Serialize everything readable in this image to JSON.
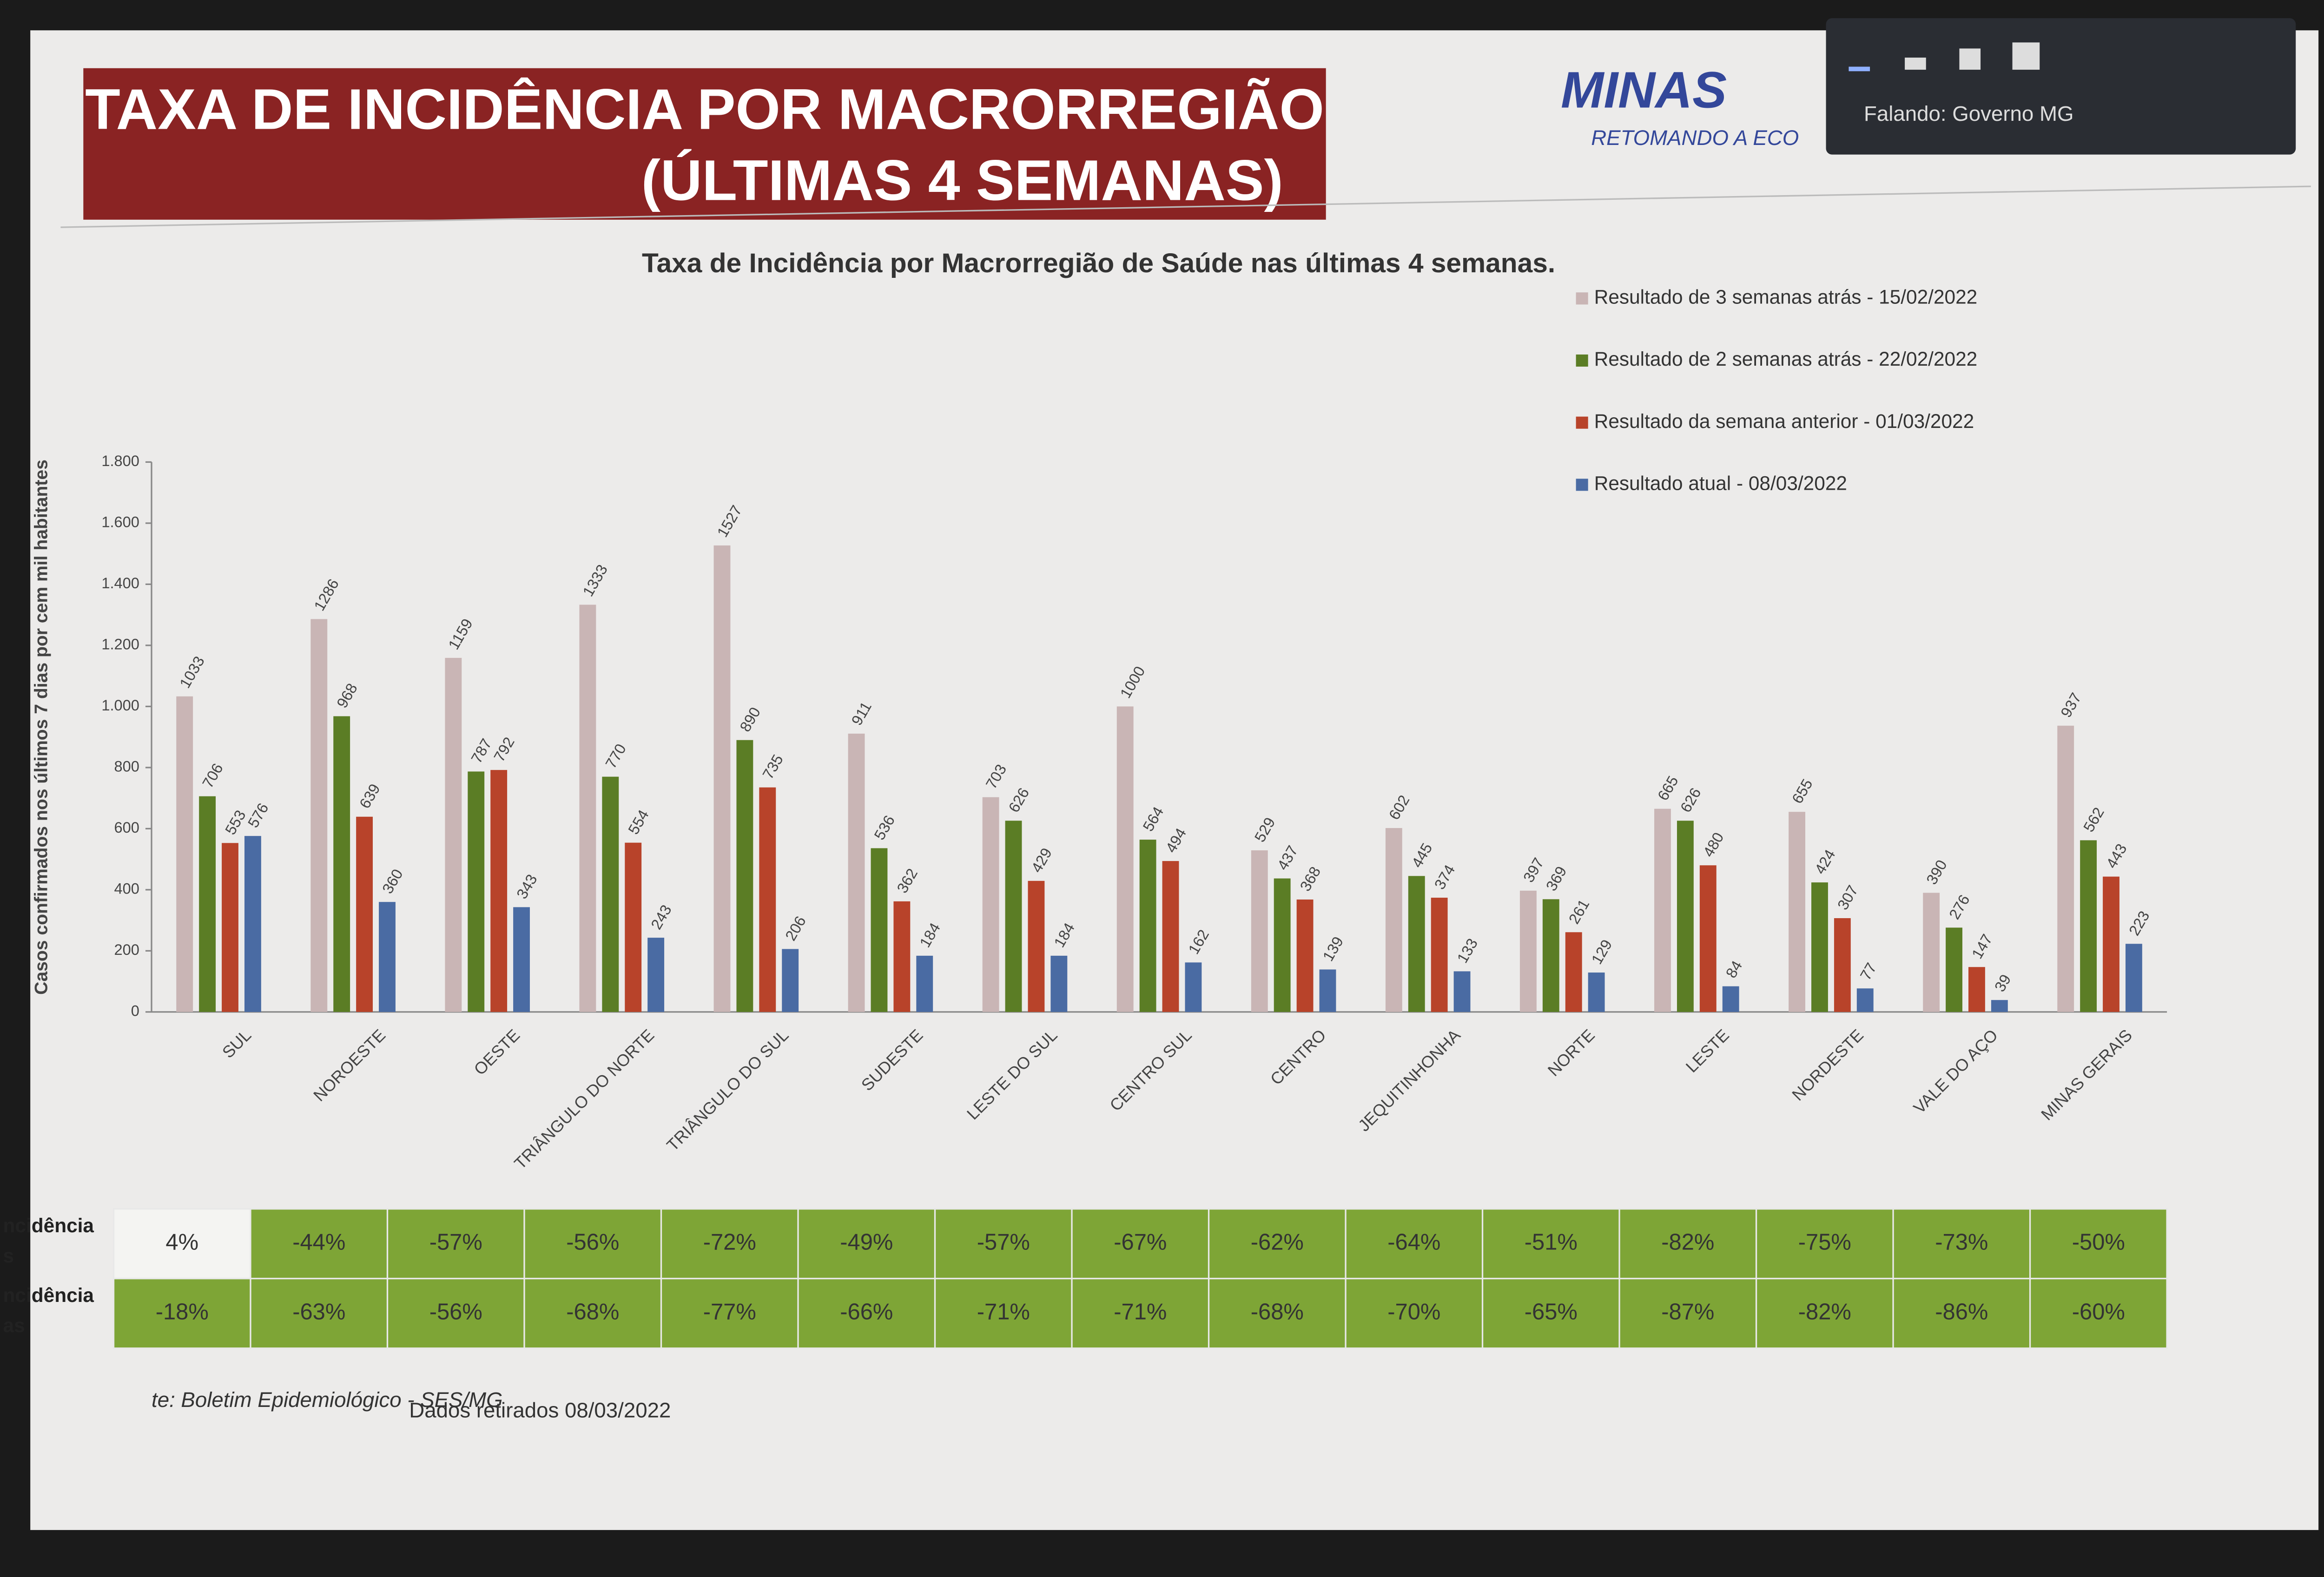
{
  "slide": {
    "title_lines": [
      "TAXA DE INCIDÊNCIA POR MACRORREGIÃO",
      "(ÚLTIMAS 4 SEMANAS)"
    ],
    "logo": "MINAS",
    "logo_tagline": "RETOMANDO A ECO"
  },
  "overlay": {
    "speaker": "Falando: Governo MG"
  },
  "chart_data": {
    "type": "bar",
    "title": "Taxa de Incidência por Macrorregião de Saúde nas últimas 4 semanas.",
    "y_label": "Casos confirmados nos últimos 7 dias por cem mil habitantes",
    "categories": [
      "SUL",
      "NOROESTE",
      "OESTE",
      "TRIÂNGULO DO NORTE",
      "TRIÂNGULO DO SUL",
      "SUDESTE",
      "LESTE DO SUL",
      "CENTRO SUL",
      "CENTRO",
      "JEQUITINHONHA",
      "NORTE",
      "LESTE",
      "NORDESTE",
      "VALE DO AÇO",
      "MINAS GERAIS"
    ],
    "series": [
      {
        "name": "Resultado de 3 semanas atrás - 15/02/2022",
        "color": "#c9b5b5",
        "values": [
          1033,
          1286,
          1159,
          1333,
          1527,
          911,
          703,
          1000,
          529,
          602,
          397,
          665,
          655,
          390,
          937
        ]
      },
      {
        "name": "Resultado de 2 semanas atrás - 22/02/2022",
        "color": "#5b7d25",
        "values": [
          706,
          968,
          787,
          770,
          890,
          536,
          626,
          564,
          437,
          445,
          369,
          626,
          424,
          276,
          562
        ]
      },
      {
        "name": "Resultado da semana anterior - 01/03/2022",
        "color": "#b8432a",
        "values": [
          553,
          639,
          792,
          554,
          735,
          362,
          429,
          494,
          368,
          374,
          261,
          480,
          307,
          147,
          443
        ]
      },
      {
        "name": "Resultado atual - 08/03/2022",
        "color": "#4a6ba3",
        "values": [
          576,
          360,
          343,
          243,
          206,
          184,
          184,
          162,
          139,
          133,
          129,
          84,
          77,
          39,
          223
        ]
      }
    ],
    "ylim": [
      0,
      1800
    ],
    "yticks": [
      0,
      200,
      400,
      600,
      800,
      {
        "value": 1000,
        "label": "1.000"
      },
      {
        "value": 1200,
        "label": "1.200"
      },
      {
        "value": 1400,
        "label": "1.400"
      },
      {
        "value": 1600,
        "label": "1.600"
      },
      {
        "value": 1800,
        "label": "1.800"
      }
    ],
    "legend": "top-right"
  },
  "table": {
    "rows": [
      {
        "label": [
          "ncidência",
          "s"
        ],
        "cells": [
          "4%",
          "-44%",
          "-57%",
          "-56%",
          "-72%",
          "-49%",
          "-57%",
          "-67%",
          "-62%",
          "-64%",
          "-51%",
          "-82%",
          "-75%",
          "-73%",
          "-50%"
        ]
      },
      {
        "label": [
          "ncidência",
          "as"
        ],
        "cells": [
          "-18%",
          "-63%",
          "-56%",
          "-68%",
          "-77%",
          "-66%",
          "-71%",
          "-71%",
          "-68%",
          "-70%",
          "-65%",
          "-87%",
          "-82%",
          "-86%",
          "-60%"
        ]
      }
    ]
  },
  "footer": {
    "source": "te: Boletim Epidemiológico - SES/MG",
    "date": "Dados retirados 08/03/2022"
  }
}
